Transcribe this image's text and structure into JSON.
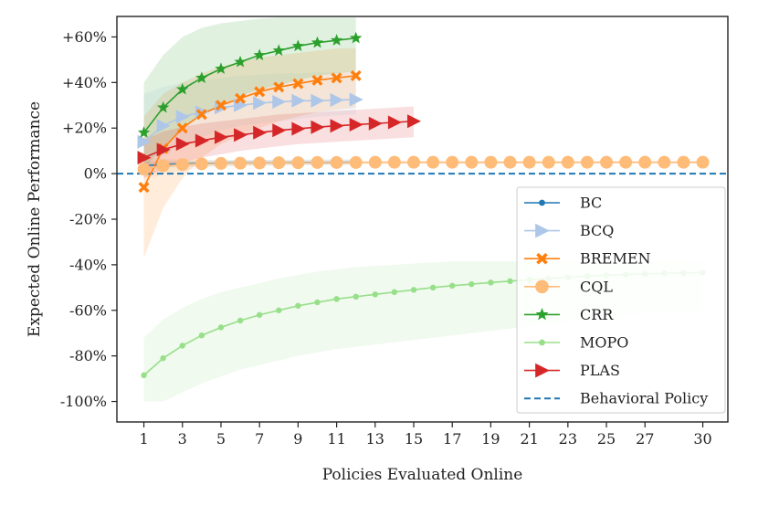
{
  "chart_data": {
    "type": "line",
    "xlabel": "Policies Evaluated Online",
    "ylabel": "Expected Online Performance",
    "xlim": [
      -0.4,
      31.3
    ],
    "ylim": [
      -109,
      69
    ],
    "xticks": [
      1,
      3,
      5,
      7,
      9,
      11,
      13,
      15,
      17,
      19,
      21,
      23,
      25,
      27,
      30
    ],
    "yticks": [
      60,
      40,
      20,
      0,
      -20,
      -40,
      -60,
      -80,
      -100
    ],
    "ytick_labels": [
      "+60%",
      "+40%",
      "+20%",
      "0%",
      "-20%",
      "-40%",
      "-60%",
      "-80%",
      "-100%"
    ],
    "legend_position": "lower-right",
    "series": [
      {
        "name": "BC",
        "color": "#1f77b4",
        "marker": "dot",
        "x": [
          1,
          2,
          3,
          4,
          5,
          6,
          7,
          8,
          9,
          10,
          11,
          12
        ],
        "values": [
          3.5,
          4.0,
          4.3,
          4.5,
          4.6,
          4.7,
          4.8,
          4.8,
          4.9,
          4.9,
          4.9,
          5.0
        ],
        "band_lower": [
          2.0,
          2.5,
          3.0,
          3.2,
          3.4,
          3.5,
          3.6,
          3.7,
          3.8,
          3.8,
          3.9,
          3.9
        ],
        "band_upper": [
          5.0,
          5.5,
          5.6,
          5.8,
          5.9,
          6.0,
          6.0,
          6.1,
          6.1,
          6.2,
          6.2,
          6.2
        ]
      },
      {
        "name": "BCQ",
        "color": "#aec7e8",
        "marker": "triangle-right",
        "x": [
          1,
          2,
          3,
          4,
          5,
          6,
          7,
          8,
          9,
          10,
          11,
          12
        ],
        "values": [
          14,
          21,
          25,
          27,
          29,
          30,
          31,
          31.5,
          32,
          32,
          32.3,
          32.5
        ],
        "band_lower": [
          2,
          8,
          13,
          16,
          19,
          21,
          22,
          23,
          24,
          25,
          25.5,
          26
        ],
        "band_upper": [
          35,
          38,
          40,
          41,
          42,
          43,
          43.5,
          44,
          44,
          44.5,
          44.5,
          45
        ]
      },
      {
        "name": "BREMEN",
        "color": "#ff7f0e",
        "marker": "x",
        "x": [
          1,
          2,
          3,
          4,
          5,
          6,
          7,
          8,
          9,
          10,
          11,
          12
        ],
        "values": [
          -6,
          11,
          20,
          26,
          30,
          33,
          36,
          38,
          39.5,
          41,
          42,
          43
        ],
        "band_lower": [
          -37,
          -15,
          -2,
          7,
          13,
          17,
          20,
          23,
          25,
          27,
          28,
          29
        ],
        "band_upper": [
          25,
          35,
          40,
          44,
          47,
          49,
          51,
          52,
          53,
          54,
          55,
          55
        ]
      },
      {
        "name": "CQL",
        "color": "#ffbb78",
        "marker": "dot-large",
        "x": [
          1,
          2,
          3,
          4,
          5,
          6,
          7,
          8,
          9,
          10,
          11,
          12,
          13,
          14,
          15,
          16,
          17,
          18,
          19,
          20,
          21,
          22,
          23,
          24,
          25,
          26,
          27,
          28,
          29,
          30
        ],
        "values": [
          2,
          3.5,
          4,
          4.3,
          4.5,
          4.6,
          4.7,
          4.8,
          4.8,
          4.9,
          4.9,
          4.9,
          5,
          5,
          5,
          5,
          5,
          5,
          5,
          5,
          5,
          5,
          5,
          5,
          5,
          5,
          5,
          5,
          5,
          5
        ],
        "band_lower": [
          -3,
          0,
          1.5,
          2.5,
          3,
          3.3,
          3.5,
          3.7,
          3.8,
          3.9,
          4,
          4,
          4.1,
          4.1,
          4.2,
          4.2,
          4.2,
          4.3,
          4.3,
          4.3,
          4.3,
          4.4,
          4.4,
          4.4,
          4.4,
          4.4,
          4.4,
          4.5,
          4.5,
          4.5
        ],
        "band_upper": [
          7,
          6.5,
          6.3,
          6.1,
          6,
          5.9,
          5.9,
          5.8,
          5.8,
          5.8,
          5.8,
          5.7,
          5.7,
          5.7,
          5.7,
          5.7,
          5.7,
          5.6,
          5.6,
          5.6,
          5.6,
          5.6,
          5.6,
          5.6,
          5.6,
          5.6,
          5.6,
          5.6,
          5.6,
          5.6
        ]
      },
      {
        "name": "CRR",
        "color": "#2ca02c",
        "marker": "star",
        "x": [
          1,
          2,
          3,
          4,
          5,
          6,
          7,
          8,
          9,
          10,
          11,
          12
        ],
        "values": [
          18,
          29,
          37,
          42,
          46,
          49,
          52,
          54,
          56,
          57.5,
          58.5,
          59.5
        ],
        "band_lower": [
          2,
          12,
          20,
          26,
          30,
          34,
          37,
          39,
          41,
          43,
          44,
          45
        ],
        "band_upper": [
          40,
          52,
          60,
          64,
          66,
          67,
          68,
          68.5,
          68.5,
          68.5,
          68.5,
          68.5
        ]
      },
      {
        "name": "MOPO",
        "color": "#98df8a",
        "marker": "dot",
        "x": [
          1,
          2,
          3,
          4,
          5,
          6,
          7,
          8,
          9,
          10,
          11,
          12,
          13,
          14,
          15,
          16,
          17,
          18,
          19,
          20,
          21,
          22,
          23,
          24,
          25,
          26,
          27,
          28,
          29,
          30
        ],
        "values": [
          -88.5,
          -81,
          -75.5,
          -71,
          -67.5,
          -64.5,
          -62,
          -60,
          -58,
          -56.5,
          -55,
          -54,
          -53,
          -52,
          -51,
          -50,
          -49.2,
          -48.5,
          -47.8,
          -47.2,
          -46.6,
          -46,
          -45.5,
          -45,
          -44.6,
          -44.3,
          -44,
          -43.8,
          -43.6,
          -43.4
        ],
        "band_lower": [
          -100,
          -100,
          -96,
          -92,
          -89,
          -86,
          -84,
          -82,
          -80,
          -78.5,
          -77,
          -76,
          -75,
          -74,
          -73,
          -72,
          -71,
          -70,
          -69,
          -68,
          -67,
          -66,
          -65,
          -64,
          -63,
          -62,
          -61.5,
          -61,
          -60.5,
          -60
        ],
        "band_upper": [
          -72,
          -64,
          -59,
          -55,
          -52,
          -50,
          -48,
          -46,
          -44.5,
          -43,
          -42,
          -41,
          -40.5,
          -40,
          -39.5,
          -39,
          -38.5,
          -38.5,
          -38.5,
          -38.5,
          -38.5,
          -38.5,
          -38.5,
          -38.5,
          -38.5,
          -38.5,
          -38.5,
          -38.5,
          -38.5,
          -38.5
        ]
      },
      {
        "name": "PLAS",
        "color": "#d62728",
        "marker": "triangle-right",
        "x": [
          1,
          2,
          3,
          4,
          5,
          6,
          7,
          8,
          9,
          10,
          11,
          12,
          13,
          14,
          15
        ],
        "values": [
          7,
          10.5,
          13,
          14.5,
          16,
          17,
          18,
          19,
          19.7,
          20.4,
          21,
          21.5,
          22,
          22.5,
          23
        ],
        "band_lower": [
          -2,
          2,
          5,
          7,
          8.5,
          10,
          11,
          12,
          13,
          13.5,
          14,
          14.5,
          15,
          15.5,
          16
        ],
        "band_upper": [
          15,
          18.5,
          20.5,
          22,
          23,
          24,
          25,
          26,
          26.5,
          27,
          27.5,
          28,
          28.5,
          29,
          29.5
        ]
      },
      {
        "name": "Behavioral Policy",
        "color": "#1f77b4",
        "marker": "none",
        "style": "dashed",
        "x": [
          -0.4,
          31.3
        ],
        "values": [
          0,
          0
        ]
      }
    ]
  }
}
